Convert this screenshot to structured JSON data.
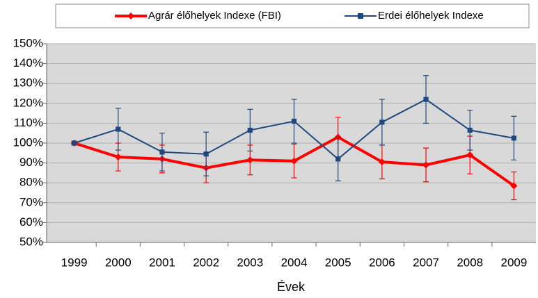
{
  "chart_data": {
    "type": "line",
    "xlabel": "Évek",
    "categories": [
      "1999",
      "2000",
      "2001",
      "2002",
      "2003",
      "2004",
      "2005",
      "2006",
      "2007",
      "2008",
      "2009"
    ],
    "series": [
      {
        "name": "Agrár élőhelyek Indexe (FBI)",
        "color": "#ff0000",
        "marker": "diamond",
        "values": [
          100,
          93,
          92,
          87.5,
          91.5,
          91,
          103,
          90.5,
          89,
          94,
          78.5
        ],
        "errors": [
          1,
          7,
          7,
          7.5,
          7.5,
          8.5,
          10,
          8.5,
          8.5,
          9.5,
          7
        ]
      },
      {
        "name": "Erdei élőhelyek Indexe",
        "color": "#1f497d",
        "marker": "square",
        "values": [
          100,
          107,
          95.5,
          94.5,
          106.5,
          111,
          92,
          110.5,
          122,
          106.5,
          102.5
        ],
        "errors": [
          0.5,
          10.5,
          9.5,
          11,
          10.5,
          11,
          11,
          11.5,
          12,
          10,
          11
        ]
      }
    ],
    "ylim": [
      50,
      150
    ],
    "yticks": [
      {
        "value": 50,
        "label": "50%"
      },
      {
        "value": 60,
        "label": "60%"
      },
      {
        "value": 70,
        "label": "70%"
      },
      {
        "value": 80,
        "label": "80%"
      },
      {
        "value": 90,
        "label": "90%"
      },
      {
        "value": 100,
        "label": "100%"
      },
      {
        "value": 110,
        "label": "110%"
      },
      {
        "value": 120,
        "label": "120%"
      },
      {
        "value": 130,
        "label": "130%"
      },
      {
        "value": 140,
        "label": "140%"
      },
      {
        "value": 150,
        "label": "150%"
      }
    ],
    "grid": true,
    "legend": "top"
  }
}
